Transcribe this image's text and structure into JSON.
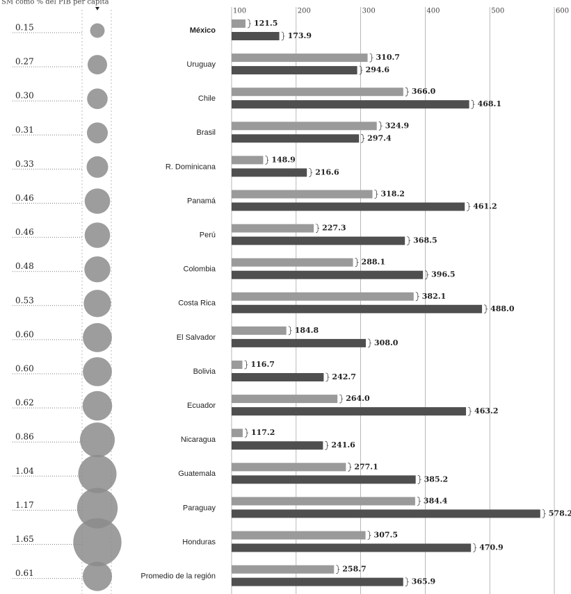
{
  "chart_data": {
    "type": "bar",
    "orientation": "horizontal",
    "bubble_title": "SM como % del PIB per cápita",
    "categories": [
      "México",
      "Uruguay",
      "Chile",
      "Brasil",
      "R. Dominicana",
      "Panamá",
      "Perú",
      "Colombia",
      "Costa Rica",
      "El Salvador",
      "Bolivia",
      "Ecuador",
      "Nicaragua",
      "Guatemala",
      "Paraguay",
      "Honduras",
      "Promedio de la región"
    ],
    "bubble_values": [
      0.15,
      0.27,
      0.3,
      0.31,
      0.33,
      0.46,
      0.46,
      0.48,
      0.53,
      0.6,
      0.6,
      0.62,
      0.86,
      1.04,
      1.17,
      1.65,
      0.61
    ],
    "bubble_labels": [
      "0.15",
      "0.27",
      "0.30",
      "0.31",
      "0.33",
      "0.46",
      "0.46",
      "0.48",
      "0.53",
      "0.60",
      "0.60",
      "0.62",
      "0.86",
      "1.04",
      "1.17",
      "1.65",
      "0.61"
    ],
    "bubble_color": "#8c8c8c",
    "series": [
      {
        "color": "#9a9a9a",
        "values": [
          121.5,
          310.7,
          366.0,
          324.9,
          148.9,
          318.2,
          227.3,
          288.1,
          382.1,
          184.8,
          116.7,
          264.0,
          117.2,
          277.1,
          384.4,
          307.5,
          258.7
        ],
        "value_labels": [
          "121.5",
          "310.7",
          "366.0",
          "324.9",
          "148.9",
          "318.2",
          "227.3",
          "288.1",
          "382.1",
          "184.8",
          "116.7",
          "264.0",
          "117.2",
          "277.1",
          "384.4",
          "307.5",
          "258.7"
        ]
      },
      {
        "color": "#4f4f4f",
        "values": [
          173.9,
          294.6,
          468.1,
          297.4,
          216.6,
          461.2,
          368.5,
          396.5,
          488.0,
          308.0,
          242.7,
          463.2,
          241.6,
          385.2,
          578.2,
          470.9,
          365.9
        ],
        "value_labels": [
          "173.9",
          "294.6",
          "468.1",
          "297.4",
          "216.6",
          "461.2",
          "368.5",
          "396.5",
          "488.0",
          "308.0",
          "242.7",
          "463.2",
          "241.6",
          "385.2",
          "578.2",
          "470.9",
          "365.9"
        ]
      }
    ],
    "xlim": [
      100,
      600
    ],
    "xticks": [
      100,
      200,
      300,
      400,
      500,
      600
    ],
    "grid": true
  }
}
